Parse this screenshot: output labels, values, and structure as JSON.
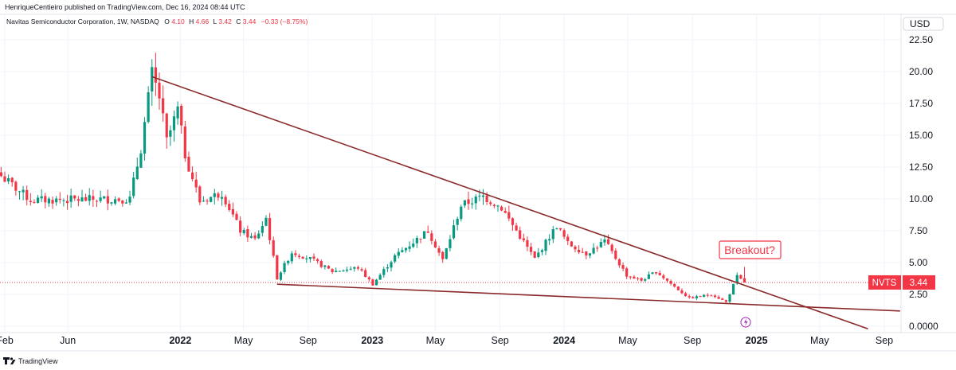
{
  "header": {
    "published": "HenriqueCentieiro published on TradingView.com, Dec 16, 2024 08:44 UTC",
    "symbol": "Navitas Semiconductor Corporation, 1W, NASDAQ",
    "o_label": "O",
    "o": "4.10",
    "h_label": "H",
    "h": "4.66",
    "l_label": "L",
    "l": "3.42",
    "c_label": "C",
    "c": "3.44",
    "change": "−0.33 (−8.75%)",
    "currency": "USD"
  },
  "footer": {
    "brand": "TradingView"
  },
  "colors": {
    "up": "#089981",
    "down": "#f23645",
    "trendline": "#8b2a2a",
    "label_red": "#f23645",
    "event": "#9c27b0"
  },
  "chart_data": {
    "type": "candlestick",
    "ticker": "NVTS",
    "last_price": "3.44",
    "annotation": "Breakout?",
    "ylim": [
      -0.5,
      24.5
    ],
    "yticks": [
      "22.50",
      "20.00",
      "17.50",
      "15.00",
      "12.50",
      "10.00",
      "7.50",
      "5.00",
      "2.50",
      "0.0000"
    ],
    "ytick_values": [
      22.5,
      20,
      17.5,
      15,
      12.5,
      10,
      7.5,
      5,
      2.5,
      0
    ],
    "xlabels": [
      {
        "label": "Feb",
        "date": "2021-02-01"
      },
      {
        "label": "Jun",
        "date": "2021-06-01"
      },
      {
        "label": "2022",
        "date": "2022-01-01",
        "bold": true
      },
      {
        "label": "May",
        "date": "2022-05-01"
      },
      {
        "label": "Sep",
        "date": "2022-09-01"
      },
      {
        "label": "2023",
        "date": "2023-01-01",
        "bold": true
      },
      {
        "label": "May",
        "date": "2023-05-01"
      },
      {
        "label": "Sep",
        "date": "2023-09-01"
      },
      {
        "label": "2024",
        "date": "2024-01-01",
        "bold": true
      },
      {
        "label": "May",
        "date": "2024-05-01"
      },
      {
        "label": "Sep",
        "date": "2024-09-01"
      },
      {
        "label": "2025",
        "date": "2025-01-01",
        "bold": true
      },
      {
        "label": "May",
        "date": "2025-05-01"
      },
      {
        "label": "Sep",
        "date": "2025-09-01"
      }
    ],
    "trendlines": [
      {
        "name": "upper",
        "from": {
          "date": "2021-11-08",
          "price": 19.6
        },
        "to": {
          "date": "2025-08-01",
          "price": -0.2
        }
      },
      {
        "name": "lower",
        "from": {
          "date": "2022-07-04",
          "price": 3.3
        },
        "to": {
          "date": "2025-10-01",
          "price": 1.2
        }
      }
    ],
    "weekly_closes": [
      {
        "from": "2021-01-25",
        "close": 11.8
      },
      {
        "from": "2021-03-22",
        "close": 9.9
      },
      {
        "from": "2021-09-27",
        "close": 10.0
      },
      {
        "from": "2021-10-18",
        "close": 14.0
      },
      {
        "from": "2021-11-08",
        "close": 19.8
      },
      {
        "from": "2021-11-22",
        "close": 18.0
      },
      {
        "from": "2021-12-06",
        "close": 14.5
      },
      {
        "from": "2021-12-27",
        "close": 17.0
      },
      {
        "from": "2022-01-10",
        "close": 13.5
      },
      {
        "from": "2022-02-07",
        "close": 9.8
      },
      {
        "from": "2022-03-21",
        "close": 10.5
      },
      {
        "from": "2022-04-25",
        "close": 7.5
      },
      {
        "from": "2022-05-23",
        "close": 6.8
      },
      {
        "from": "2022-06-13",
        "close": 8.5
      },
      {
        "from": "2022-07-04",
        "close": 3.8
      },
      {
        "from": "2022-08-01",
        "close": 5.8
      },
      {
        "from": "2022-09-05",
        "close": 5.3
      },
      {
        "from": "2022-10-17",
        "close": 4.3
      },
      {
        "from": "2022-12-05",
        "close": 4.6
      },
      {
        "from": "2023-01-02",
        "close": 3.3
      },
      {
        "from": "2023-02-13",
        "close": 5.5
      },
      {
        "from": "2023-04-17",
        "close": 7.5
      },
      {
        "from": "2023-05-15",
        "close": 5.2
      },
      {
        "from": "2023-06-19",
        "close": 9.5
      },
      {
        "from": "2023-07-31",
        "close": 10.2
      },
      {
        "from": "2023-09-04",
        "close": 9.3
      },
      {
        "from": "2023-10-02",
        "close": 7.5
      },
      {
        "from": "2023-11-06",
        "close": 5.3
      },
      {
        "from": "2023-12-18",
        "close": 7.9
      },
      {
        "from": "2024-01-08",
        "close": 6.5
      },
      {
        "from": "2024-02-12",
        "close": 5.7
      },
      {
        "from": "2024-03-18",
        "close": 6.7
      },
      {
        "from": "2024-04-29",
        "close": 4.0
      },
      {
        "from": "2024-05-27",
        "close": 3.6
      },
      {
        "from": "2024-06-24",
        "close": 4.3
      },
      {
        "from": "2024-07-29",
        "close": 3.1
      },
      {
        "from": "2024-08-26",
        "close": 2.2
      },
      {
        "from": "2024-10-07",
        "close": 2.5
      },
      {
        "from": "2024-11-04",
        "close": 1.9
      },
      {
        "from": "2024-11-25",
        "close": 3.9
      },
      {
        "from": "2024-12-09",
        "close": 3.44
      }
    ]
  }
}
